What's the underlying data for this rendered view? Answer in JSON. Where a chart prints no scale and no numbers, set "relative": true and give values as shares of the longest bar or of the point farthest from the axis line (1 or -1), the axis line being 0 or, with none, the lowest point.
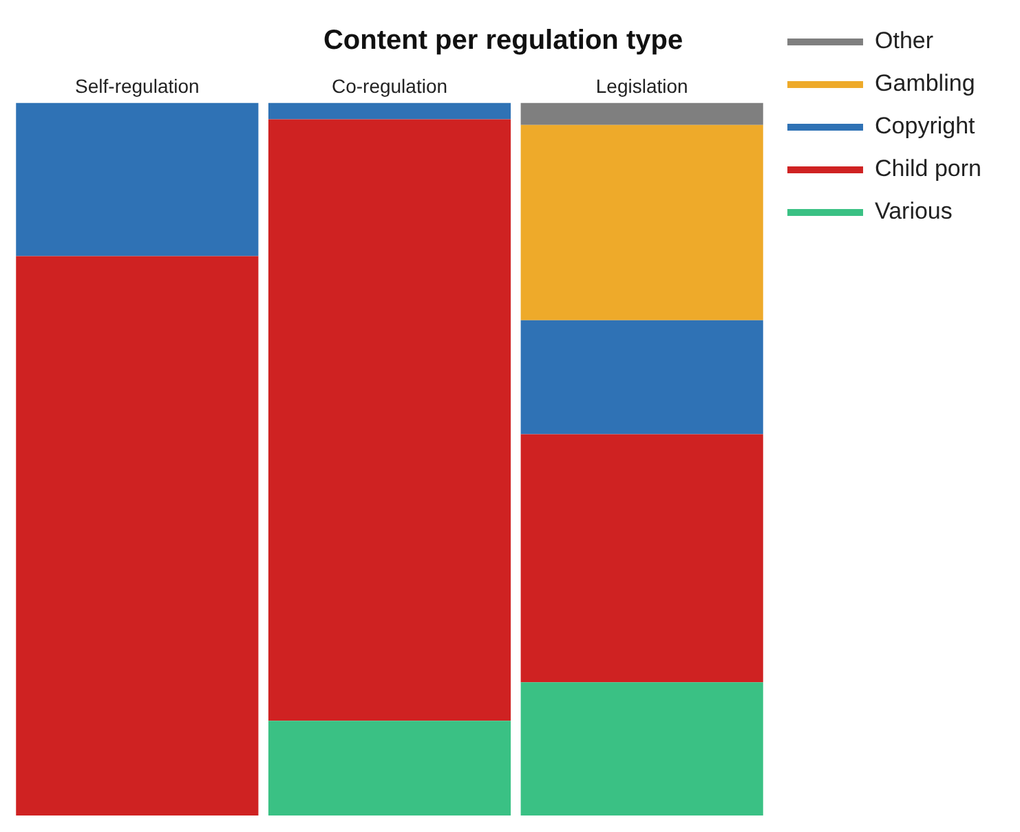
{
  "chart_data": {
    "type": "bar",
    "title": "Content per regulation type",
    "categories": [
      "Self-regulation",
      "Co-regulation",
      "Legislation"
    ],
    "stacked": true,
    "relative": true,
    "legend": "top right",
    "grid": false,
    "series": [
      {
        "name": "Various",
        "color": "#3ac184",
        "values": [
          0,
          0.133,
          0.187
        ]
      },
      {
        "name": "Child porn",
        "color": "#cf2222",
        "values": [
          0.785,
          0.844,
          0.348
        ]
      },
      {
        "name": "Copyright",
        "color": "#2f72b5",
        "values": [
          0.215,
          0.023,
          0.16
        ]
      },
      {
        "name": "Gambling",
        "color": "#eeaa2a",
        "values": [
          0,
          0,
          0.274
        ]
      },
      {
        "name": "Other",
        "color": "#7f7f7f",
        "values": [
          0,
          0,
          0.031
        ]
      }
    ]
  }
}
